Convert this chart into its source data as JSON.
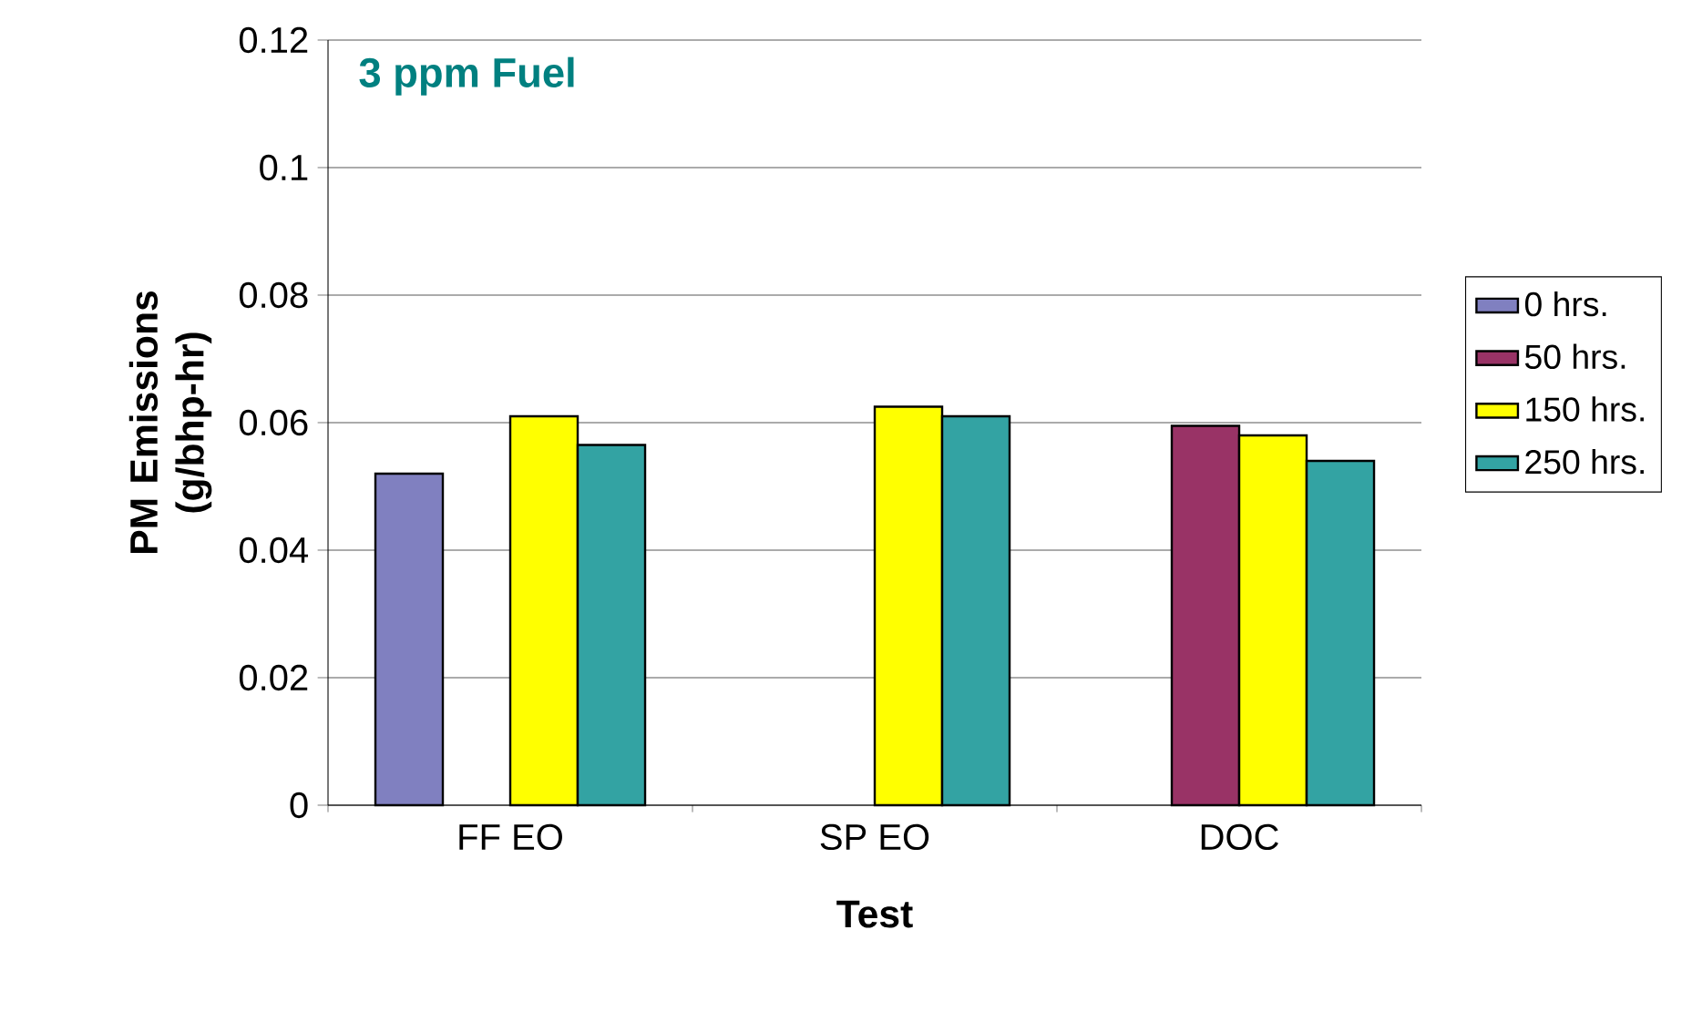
{
  "chart_data": {
    "type": "bar",
    "title": "3 ppm Fuel",
    "xlabel": "Test",
    "ylabel": "PM Emissions (g/bhp-hr)",
    "categories": [
      "FF EO",
      "SP EO",
      "DOC"
    ],
    "series": [
      {
        "name": "0 hrs.",
        "color": "#8080c0",
        "values": [
          0.052,
          null,
          null
        ]
      },
      {
        "name": "50 hrs.",
        "color": "#993366",
        "values": [
          null,
          null,
          0.0595
        ]
      },
      {
        "name": "150 hrs.",
        "color": "#ffff00",
        "values": [
          0.061,
          0.0625,
          0.058
        ]
      },
      {
        "name": "250 hrs.",
        "color": "#33a3a3",
        "values": [
          0.0565,
          0.061,
          0.054
        ]
      }
    ],
    "ylim": [
      0,
      0.12
    ],
    "yticks": [
      0,
      0.02,
      0.04,
      0.06,
      0.08,
      0.1,
      0.12
    ],
    "grid": "y",
    "legend": "right"
  }
}
